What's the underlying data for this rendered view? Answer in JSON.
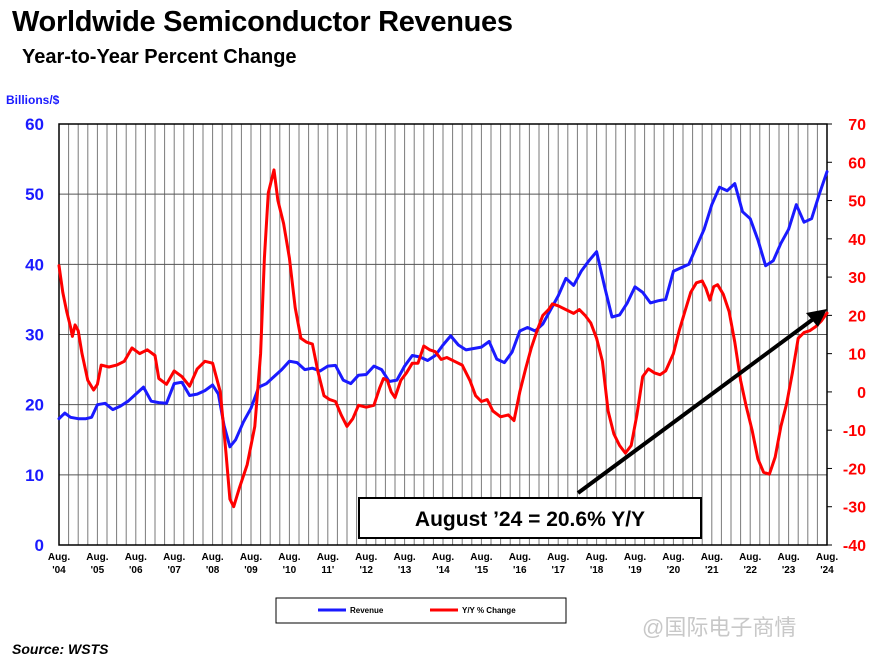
{
  "title": "Worldwide Semiconductor Revenues",
  "subtitle": "Year-to-Year Percent Change",
  "source": "Source: WSTS",
  "watermark": "@国际电子商情",
  "chart_data": {
    "type": "line",
    "title": "Worldwide Semiconductor Revenues",
    "subtitle": "Year-to-Year Percent Change",
    "left_axis_label": "Billions/$",
    "left_axis": {
      "ylim": [
        0,
        60
      ],
      "ticks": [
        0,
        10,
        20,
        30,
        40,
        50,
        60
      ],
      "color": "#1a1aff"
    },
    "right_axis": {
      "ylim": [
        -40,
        70
      ],
      "ticks": [
        -40,
        -30,
        -20,
        -10,
        0,
        10,
        20,
        30,
        40,
        50,
        60,
        70
      ],
      "color": "#ff0000"
    },
    "x_tick_labels": [
      [
        "Aug.",
        "'04"
      ],
      [
        "Aug.",
        "'05"
      ],
      [
        "Aug.",
        "'06"
      ],
      [
        "Aug.",
        "'07"
      ],
      [
        "Aug.",
        "'08"
      ],
      [
        "Aug.",
        "'09"
      ],
      [
        "Aug.",
        "'10"
      ],
      [
        "Aug.",
        "11'"
      ],
      [
        "Aug.",
        "'12"
      ],
      [
        "Aug.",
        "'13"
      ],
      [
        "Aug.",
        "'14"
      ],
      [
        "Aug.",
        "'15"
      ],
      [
        "Aug.",
        "'16"
      ],
      [
        "Aug.",
        "'17"
      ],
      [
        "Aug.",
        "'18"
      ],
      [
        "Aug.",
        "'19"
      ],
      [
        "Aug.",
        "'20"
      ],
      [
        "Aug.",
        "'21"
      ],
      [
        "Aug.",
        "'22"
      ],
      [
        "Aug.",
        "'23"
      ],
      [
        "Aug.",
        "'24"
      ]
    ],
    "grid": true,
    "legend_position": "bottom-center",
    "series": [
      {
        "name": "Revenue",
        "axis": "left",
        "color": "#1a1aff",
        "points": [
          [
            0,
            18.0
          ],
          [
            0.15,
            18.8
          ],
          [
            0.3,
            18.2
          ],
          [
            0.5,
            18.0
          ],
          [
            0.7,
            18.0
          ],
          [
            0.85,
            18.2
          ],
          [
            1.0,
            20.0
          ],
          [
            1.2,
            20.2
          ],
          [
            1.4,
            19.3
          ],
          [
            1.6,
            19.8
          ],
          [
            1.8,
            20.5
          ],
          [
            2.0,
            21.5
          ],
          [
            2.2,
            22.5
          ],
          [
            2.4,
            20.5
          ],
          [
            2.6,
            20.3
          ],
          [
            2.8,
            20.2
          ],
          [
            3.0,
            23.0
          ],
          [
            3.2,
            23.2
          ],
          [
            3.4,
            21.3
          ],
          [
            3.6,
            21.5
          ],
          [
            3.8,
            22.0
          ],
          [
            4.0,
            22.8
          ],
          [
            4.15,
            21.5
          ],
          [
            4.3,
            17.0
          ],
          [
            4.45,
            14.0
          ],
          [
            4.6,
            15.0
          ],
          [
            4.8,
            17.5
          ],
          [
            5.0,
            19.5
          ],
          [
            5.2,
            22.5
          ],
          [
            5.4,
            23.0
          ],
          [
            5.6,
            24.0
          ],
          [
            5.8,
            25.0
          ],
          [
            6.0,
            26.2
          ],
          [
            6.2,
            26.0
          ],
          [
            6.4,
            25.0
          ],
          [
            6.6,
            25.2
          ],
          [
            6.8,
            24.8
          ],
          [
            7.0,
            25.5
          ],
          [
            7.2,
            25.6
          ],
          [
            7.4,
            23.5
          ],
          [
            7.6,
            23.0
          ],
          [
            7.8,
            24.2
          ],
          [
            8.0,
            24.3
          ],
          [
            8.2,
            25.5
          ],
          [
            8.4,
            25.0
          ],
          [
            8.6,
            23.3
          ],
          [
            8.8,
            23.5
          ],
          [
            9.0,
            25.5
          ],
          [
            9.2,
            27.0
          ],
          [
            9.4,
            26.8
          ],
          [
            9.6,
            26.3
          ],
          [
            9.8,
            27.0
          ],
          [
            10.0,
            28.5
          ],
          [
            10.2,
            29.8
          ],
          [
            10.4,
            28.5
          ],
          [
            10.6,
            27.8
          ],
          [
            10.8,
            28.0
          ],
          [
            11.0,
            28.2
          ],
          [
            11.2,
            29.0
          ],
          [
            11.4,
            26.5
          ],
          [
            11.6,
            26.0
          ],
          [
            11.8,
            27.5
          ],
          [
            12.0,
            30.5
          ],
          [
            12.2,
            31.0
          ],
          [
            12.4,
            30.5
          ],
          [
            12.6,
            31.5
          ],
          [
            12.8,
            33.5
          ],
          [
            13.0,
            35.5
          ],
          [
            13.2,
            38.0
          ],
          [
            13.4,
            37.0
          ],
          [
            13.6,
            39.0
          ],
          [
            13.8,
            40.5
          ],
          [
            14.0,
            41.8
          ],
          [
            14.2,
            37.0
          ],
          [
            14.4,
            32.5
          ],
          [
            14.6,
            32.8
          ],
          [
            14.8,
            34.5
          ],
          [
            15.0,
            36.8
          ],
          [
            15.2,
            36.0
          ],
          [
            15.4,
            34.5
          ],
          [
            15.6,
            34.8
          ],
          [
            15.8,
            35.0
          ],
          [
            16.0,
            39.0
          ],
          [
            16.2,
            39.5
          ],
          [
            16.4,
            40.0
          ],
          [
            16.6,
            42.5
          ],
          [
            16.8,
            45.0
          ],
          [
            17.0,
            48.5
          ],
          [
            17.2,
            51.0
          ],
          [
            17.4,
            50.5
          ],
          [
            17.6,
            51.5
          ],
          [
            17.8,
            47.5
          ],
          [
            18.0,
            46.5
          ],
          [
            18.2,
            43.5
          ],
          [
            18.4,
            39.8
          ],
          [
            18.6,
            40.5
          ],
          [
            18.8,
            43.0
          ],
          [
            19.0,
            45.0
          ],
          [
            19.2,
            48.5
          ],
          [
            19.4,
            46.0
          ],
          [
            19.6,
            46.5
          ],
          [
            19.8,
            50.0
          ],
          [
            20.0,
            53.2
          ]
        ]
      },
      {
        "name": "Y/Y % Change",
        "axis": "right",
        "color": "#ff0000",
        "points": [
          [
            0,
            33.0
          ],
          [
            0.1,
            26.0
          ],
          [
            0.2,
            21.0
          ],
          [
            0.3,
            17.0
          ],
          [
            0.35,
            14.5
          ],
          [
            0.42,
            17.5
          ],
          [
            0.5,
            16.0
          ],
          [
            0.6,
            10.0
          ],
          [
            0.75,
            3.0
          ],
          [
            0.9,
            0.5
          ],
          [
            1.0,
            2.0
          ],
          [
            1.1,
            7.0
          ],
          [
            1.3,
            6.5
          ],
          [
            1.5,
            7.0
          ],
          [
            1.7,
            8.0
          ],
          [
            1.9,
            11.5
          ],
          [
            2.1,
            10.0
          ],
          [
            2.3,
            11.0
          ],
          [
            2.5,
            9.5
          ],
          [
            2.6,
            3.5
          ],
          [
            2.8,
            2.0
          ],
          [
            3.0,
            5.5
          ],
          [
            3.2,
            4.0
          ],
          [
            3.4,
            1.5
          ],
          [
            3.6,
            6.0
          ],
          [
            3.8,
            8.0
          ],
          [
            4.0,
            7.5
          ],
          [
            4.2,
            0.0
          ],
          [
            4.35,
            -16.0
          ],
          [
            4.45,
            -28.0
          ],
          [
            4.55,
            -30.0
          ],
          [
            4.7,
            -25.0
          ],
          [
            4.9,
            -19.0
          ],
          [
            5.1,
            -9.0
          ],
          [
            5.25,
            10.0
          ],
          [
            5.35,
            35.0
          ],
          [
            5.45,
            52.0
          ],
          [
            5.6,
            58.0
          ],
          [
            5.7,
            50.0
          ],
          [
            5.85,
            44.0
          ],
          [
            6.0,
            35.0
          ],
          [
            6.15,
            22.0
          ],
          [
            6.3,
            14.0
          ],
          [
            6.45,
            13.0
          ],
          [
            6.6,
            12.5
          ],
          [
            6.75,
            5.0
          ],
          [
            6.9,
            -1.0
          ],
          [
            7.05,
            -2.0
          ],
          [
            7.2,
            -2.5
          ],
          [
            7.35,
            -6.0
          ],
          [
            7.5,
            -9.0
          ],
          [
            7.65,
            -7.0
          ],
          [
            7.8,
            -3.5
          ],
          [
            8.0,
            -4.0
          ],
          [
            8.2,
            -3.5
          ],
          [
            8.35,
            1.0
          ],
          [
            8.45,
            3.5
          ],
          [
            8.55,
            3.0
          ],
          [
            8.65,
            0.0
          ],
          [
            8.75,
            -1.5
          ],
          [
            8.9,
            3.0
          ],
          [
            9.05,
            5.0
          ],
          [
            9.2,
            7.5
          ],
          [
            9.35,
            7.5
          ],
          [
            9.5,
            12.0
          ],
          [
            9.65,
            11.0
          ],
          [
            9.8,
            10.5
          ],
          [
            9.95,
            8.5
          ],
          [
            10.1,
            9.0
          ],
          [
            10.3,
            8.0
          ],
          [
            10.5,
            7.0
          ],
          [
            10.7,
            3.0
          ],
          [
            10.85,
            -1.0
          ],
          [
            11.0,
            -2.5
          ],
          [
            11.15,
            -2.0
          ],
          [
            11.3,
            -5.0
          ],
          [
            11.5,
            -6.5
          ],
          [
            11.7,
            -6.0
          ],
          [
            11.85,
            -7.5
          ],
          [
            12.0,
            0.0
          ],
          [
            12.15,
            6.0
          ],
          [
            12.3,
            11.5
          ],
          [
            12.45,
            16.0
          ],
          [
            12.6,
            20.0
          ],
          [
            12.75,
            21.5
          ],
          [
            12.85,
            23.0
          ],
          [
            13.0,
            22.5
          ],
          [
            13.2,
            21.5
          ],
          [
            13.4,
            20.5
          ],
          [
            13.55,
            21.5
          ],
          [
            13.7,
            20.0
          ],
          [
            13.85,
            18.0
          ],
          [
            14.0,
            14.0
          ],
          [
            14.15,
            8.0
          ],
          [
            14.3,
            -5.0
          ],
          [
            14.45,
            -11.0
          ],
          [
            14.6,
            -14.0
          ],
          [
            14.75,
            -16.0
          ],
          [
            14.9,
            -14.0
          ],
          [
            15.05,
            -6.0
          ],
          [
            15.2,
            4.0
          ],
          [
            15.35,
            6.0
          ],
          [
            15.5,
            5.0
          ],
          [
            15.65,
            4.5
          ],
          [
            15.8,
            5.5
          ],
          [
            16.0,
            10.0
          ],
          [
            16.15,
            16.0
          ],
          [
            16.3,
            21.0
          ],
          [
            16.45,
            26.0
          ],
          [
            16.6,
            28.5
          ],
          [
            16.75,
            29.0
          ],
          [
            16.85,
            27.0
          ],
          [
            16.95,
            24.0
          ],
          [
            17.05,
            27.5
          ],
          [
            17.15,
            28.0
          ],
          [
            17.3,
            25.5
          ],
          [
            17.45,
            21.0
          ],
          [
            17.6,
            13.0
          ],
          [
            17.75,
            3.0
          ],
          [
            17.9,
            -4.0
          ],
          [
            18.05,
            -10.0
          ],
          [
            18.2,
            -17.5
          ],
          [
            18.35,
            -21.0
          ],
          [
            18.5,
            -21.5
          ],
          [
            18.65,
            -17.0
          ],
          [
            18.8,
            -9.0
          ],
          [
            18.95,
            -3.0
          ],
          [
            19.1,
            5.0
          ],
          [
            19.25,
            14.0
          ],
          [
            19.4,
            15.5
          ],
          [
            19.55,
            16.0
          ],
          [
            19.7,
            17.0
          ],
          [
            19.85,
            18.5
          ],
          [
            20.0,
            20.6
          ]
        ]
      }
    ],
    "annotation": {
      "text": "August ’24 = 20.6% Y/Y"
    }
  }
}
